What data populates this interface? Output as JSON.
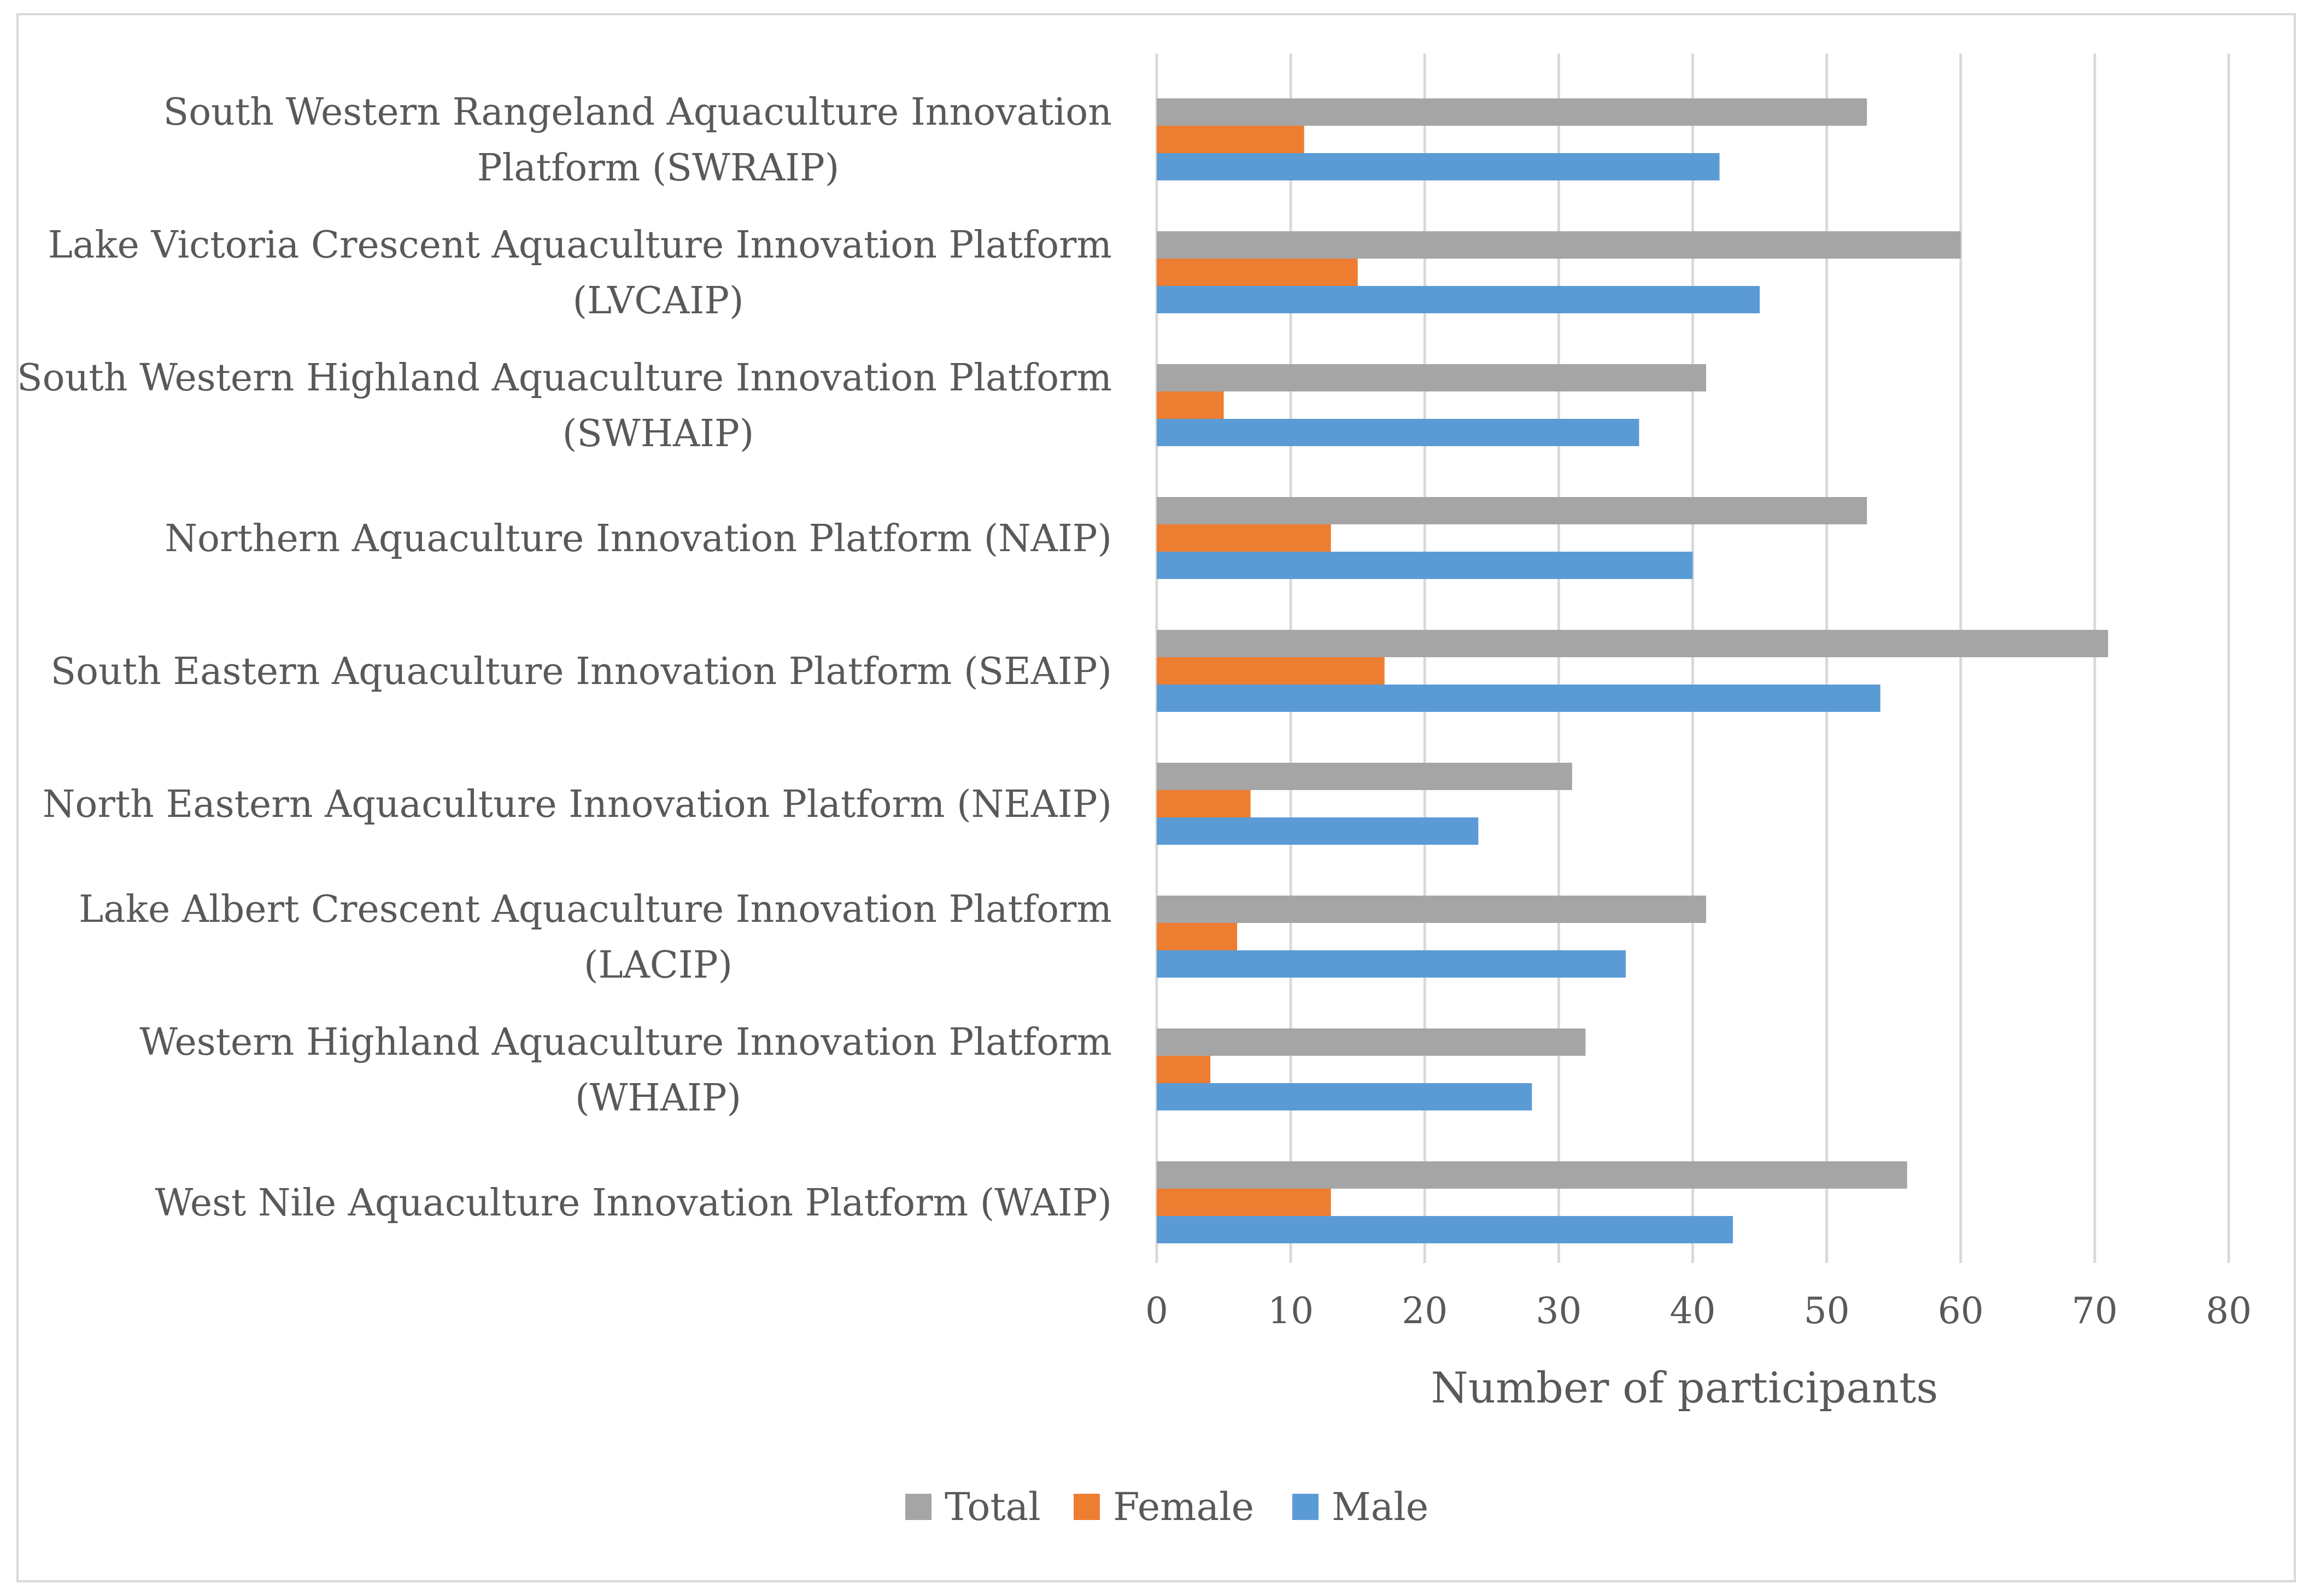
{
  "chart_data": {
    "type": "bar",
    "orientation": "horizontal",
    "categories": [
      [
        "South Western Rangeland Aquaculture Innovation",
        "Platform (SWRAIP)"
      ],
      [
        "Lake Victoria Crescent Aquaculture Innovation  Platform",
        "(LVCAIP)"
      ],
      [
        "South Western Highland Aquaculture Innovation Platform",
        "(SWHAIP)"
      ],
      [
        "Northern Aquaculture Innovation Platform (NAIP)"
      ],
      [
        "South Eastern Aquaculture Innovation Platform (SEAIP)"
      ],
      [
        "North Eastern Aquaculture Innovation Platform (NEAIP)"
      ],
      [
        "Lake Albert Crescent  Aquaculture Innovation Platform",
        "(LACIP)"
      ],
      [
        "Western  Highland Aquaculture Innovation Platform",
        "(WHAIP)"
      ],
      [
        "West Nile Aquaculture Innovation Platform (WAIP)"
      ]
    ],
    "series": [
      {
        "name": "Total",
        "color": "#a5a5a5",
        "values": [
          53,
          60,
          41,
          53,
          71,
          31,
          41,
          32,
          56
        ]
      },
      {
        "name": "Female",
        "color": "#ed7d31",
        "values": [
          11,
          15,
          5,
          13,
          17,
          7,
          6,
          4,
          13
        ]
      },
      {
        "name": "Male",
        "color": "#5b9bd5",
        "values": [
          42,
          45,
          36,
          40,
          54,
          24,
          35,
          28,
          43
        ]
      }
    ],
    "xlim": [
      0,
      80
    ],
    "xticks": [
      "0",
      "10",
      "20",
      "30",
      "40",
      "50",
      "60",
      "70",
      "80"
    ],
    "xlabel": "Number of participants",
    "ylabel": "",
    "title": "",
    "grid": "vertical",
    "legend_position": "bottom"
  }
}
